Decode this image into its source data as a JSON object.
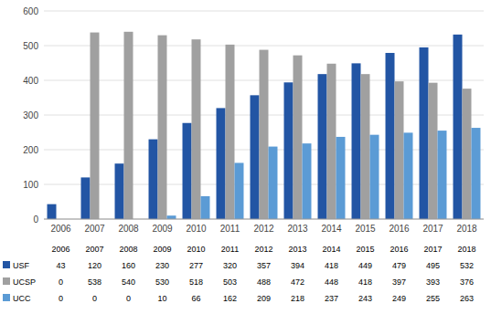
{
  "chart_data": {
    "type": "bar",
    "categories": [
      "2006",
      "2007",
      "2008",
      "2009",
      "2010",
      "2011",
      "2012",
      "2013",
      "2014",
      "2015",
      "2016",
      "2017",
      "2018"
    ],
    "series": [
      {
        "name": "USF",
        "color": "#2255A4",
        "values": [
          43,
          120,
          160,
          230,
          277,
          320,
          357,
          394,
          418,
          449,
          479,
          495,
          532
        ]
      },
      {
        "name": "UCSP",
        "color": "#A0A0A0",
        "values": [
          0,
          538,
          540,
          530,
          518,
          503,
          488,
          472,
          448,
          418,
          397,
          393,
          376
        ]
      },
      {
        "name": "UCC",
        "color": "#5B9BD5",
        "values": [
          0,
          0,
          0,
          10,
          66,
          162,
          209,
          218,
          237,
          243,
          249,
          255,
          263
        ]
      }
    ],
    "ylim": [
      0,
      600
    ],
    "yticks": [
      0,
      100,
      200,
      300,
      400,
      500,
      600
    ],
    "grid": true
  }
}
